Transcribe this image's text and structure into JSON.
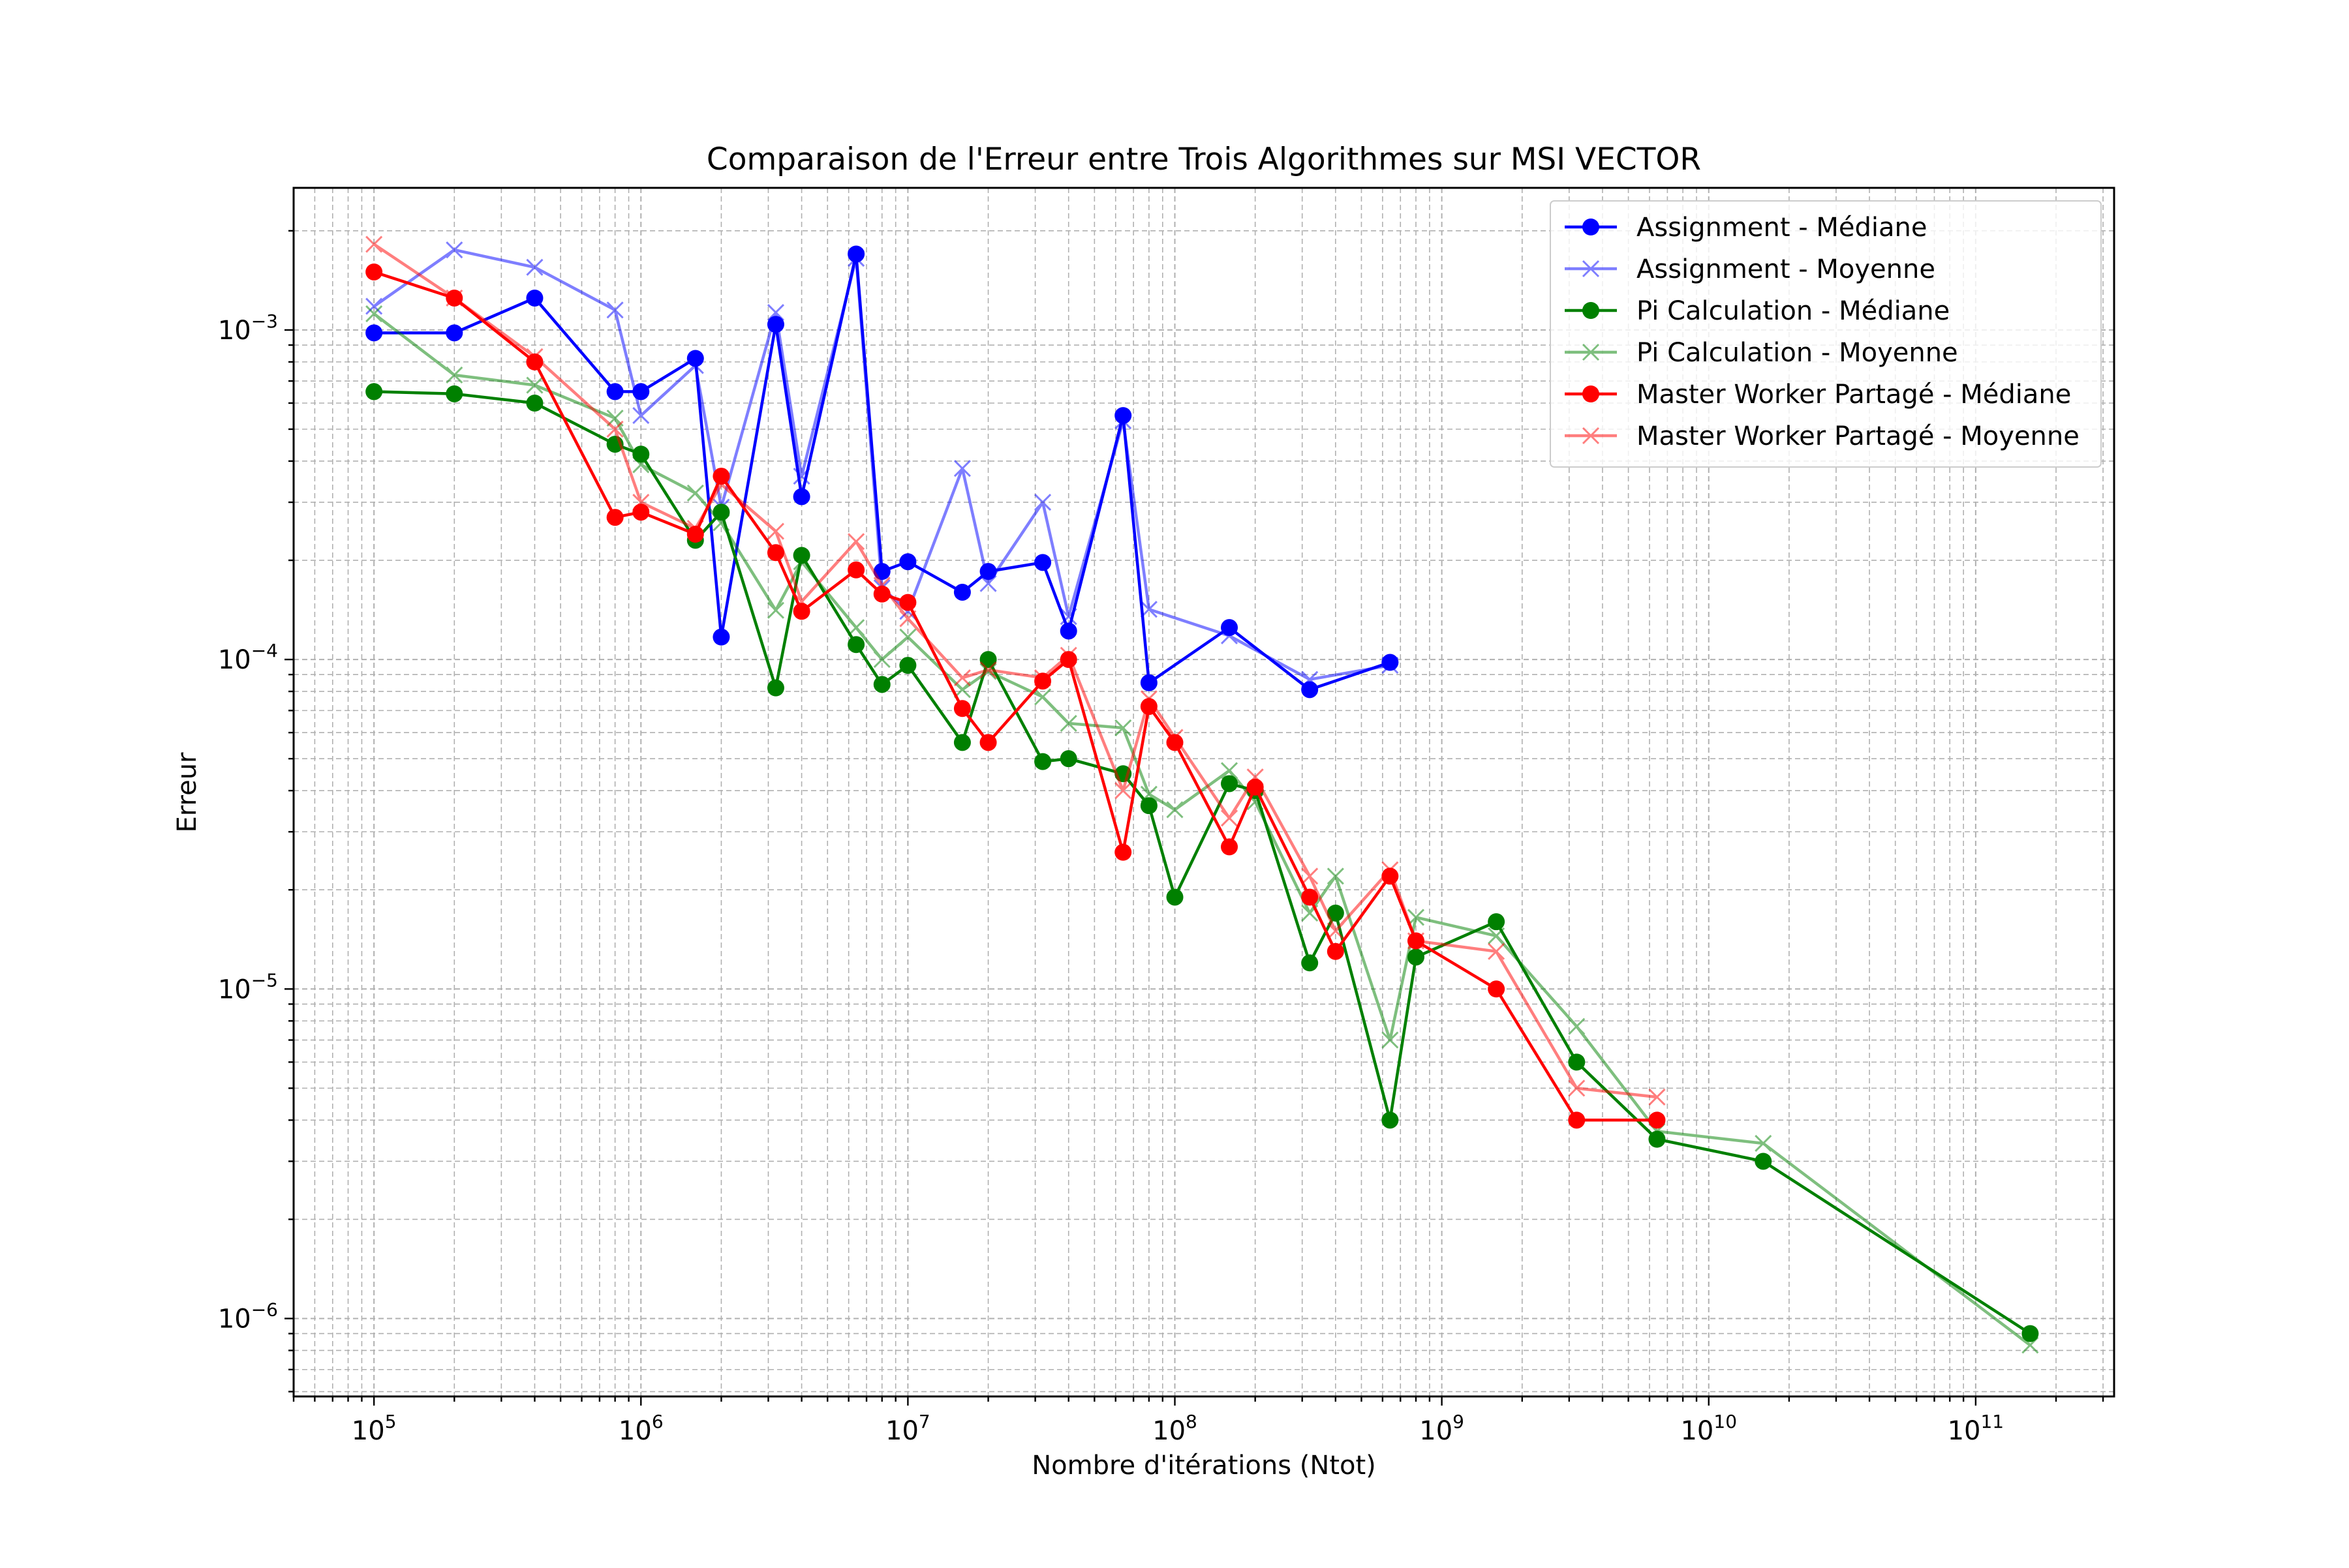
{
  "chart_data": {
    "type": "line",
    "title": "Comparaison de l'Erreur entre Trois Algorithmes sur MSI VECTOR",
    "xlabel": "Nombre d'itérations (Ntot)",
    "ylabel": "Erreur",
    "xscale": "log",
    "yscale": "log",
    "xlim": [
      50000,
      330000000000
    ],
    "ylim": [
      5.8e-07,
      0.0027
    ],
    "x_ticks": [
      {
        "value": 100000,
        "base": "10",
        "exp": "5"
      },
      {
        "value": 1000000,
        "base": "10",
        "exp": "6"
      },
      {
        "value": 10000000,
        "base": "10",
        "exp": "7"
      },
      {
        "value": 100000000,
        "base": "10",
        "exp": "8"
      },
      {
        "value": 1000000000,
        "base": "10",
        "exp": "9"
      },
      {
        "value": 10000000000,
        "base": "10",
        "exp": "10"
      },
      {
        "value": 100000000000,
        "base": "10",
        "exp": "11"
      }
    ],
    "y_ticks": [
      {
        "value": 1e-06,
        "base": "10",
        "exp": "−6"
      },
      {
        "value": 1e-05,
        "base": "10",
        "exp": "−5"
      },
      {
        "value": 0.0001,
        "base": "10",
        "exp": "−4"
      },
      {
        "value": 0.001,
        "base": "10",
        "exp": "−3"
      }
    ],
    "grid": true,
    "legend_position": "top-right",
    "series": [
      {
        "name": "Assignment - Médiane",
        "color": "#0000ff",
        "marker": "circle",
        "opacity": 1,
        "x": [
          100000,
          200000,
          400000,
          800000,
          1000000,
          1600000,
          2000000,
          3200000,
          4000000,
          6400000,
          8000000,
          10000000,
          16000000,
          20000000,
          32000000,
          40000000,
          64000000,
          80000000,
          160000000,
          320000000,
          640000000
        ],
        "y": [
          0.00098,
          0.00098,
          0.00125,
          0.00065,
          0.00065,
          0.00082,
          0.000117,
          0.00104,
          0.000312,
          0.0017,
          0.000185,
          0.000198,
          0.00016,
          0.000185,
          0.000197,
          0.000122,
          0.00055,
          8.5e-05,
          0.000125,
          8.1e-05,
          9.8e-05
        ]
      },
      {
        "name": "Assignment - Moyenne",
        "color": "#0000ff",
        "marker": "x",
        "opacity": 0.5,
        "x": [
          100000,
          200000,
          400000,
          800000,
          1000000,
          1600000,
          2000000,
          3200000,
          4000000,
          6400000,
          8000000,
          10000000,
          16000000,
          20000000,
          32000000,
          40000000,
          64000000,
          80000000,
          160000000,
          320000000,
          640000000
        ],
        "y": [
          0.00118,
          0.00175,
          0.00155,
          0.00115,
          0.00055,
          0.00078,
          0.00029,
          0.00113,
          0.00036,
          0.00165,
          0.000165,
          0.00014,
          0.00038,
          0.00017,
          0.0003,
          0.000135,
          0.00053,
          0.000142,
          0.000118,
          8.7e-05,
          9.6e-05
        ]
      },
      {
        "name": "Pi Calculation - Médiane",
        "color": "#008000",
        "marker": "circle",
        "opacity": 1,
        "x": [
          100000,
          200000,
          400000,
          800000,
          1000000,
          1600000,
          2000000,
          3200000,
          4000000,
          6400000,
          8000000,
          10000000,
          16000000,
          20000000,
          32000000,
          40000000,
          64000000,
          80000000,
          100000000,
          160000000,
          200000000,
          320000000,
          400000000,
          640000000,
          800000000,
          1600000000,
          3200000000,
          6400000000,
          16000000000,
          160000000000
        ],
        "y": [
          0.00065,
          0.00064,
          0.0006,
          0.00045,
          0.00042,
          0.00023,
          0.00028,
          8.2e-05,
          0.000207,
          0.000111,
          8.4e-05,
          9.6e-05,
          5.6e-05,
          0.0001,
          4.9e-05,
          5e-05,
          4.5e-05,
          3.6e-05,
          1.9e-05,
          4.2e-05,
          4e-05,
          1.2e-05,
          1.7e-05,
          4e-06,
          1.25e-05,
          1.6e-05,
          6e-06,
          3.5e-06,
          3e-06,
          9e-07
        ]
      },
      {
        "name": "Pi Calculation - Moyenne",
        "color": "#008000",
        "marker": "x",
        "opacity": 0.5,
        "x": [
          100000,
          200000,
          400000,
          800000,
          1000000,
          1600000,
          2000000,
          3200000,
          4000000,
          6400000,
          8000000,
          10000000,
          16000000,
          20000000,
          32000000,
          40000000,
          64000000,
          80000000,
          100000000,
          160000000,
          200000000,
          320000000,
          400000000,
          640000000,
          800000000,
          1600000000,
          3200000000,
          6400000000,
          16000000000,
          160000000000
        ],
        "y": [
          0.00112,
          0.00073,
          0.00068,
          0.00054,
          0.00039,
          0.00032,
          0.00026,
          0.000141,
          0.000198,
          0.000125,
          0.0001,
          0.000117,
          8.1e-05,
          9.2e-05,
          7.7e-05,
          6.4e-05,
          6.2e-05,
          3.9e-05,
          3.5e-05,
          4.6e-05,
          3.7e-05,
          1.7e-05,
          2.2e-05,
          7e-06,
          1.65e-05,
          1.45e-05,
          7.7e-06,
          3.7e-06,
          3.4e-06,
          8.3e-07
        ]
      },
      {
        "name": "Master Worker Partagé - Médiane",
        "color": "#ff0000",
        "marker": "circle",
        "opacity": 1,
        "x": [
          100000,
          200000,
          400000,
          800000,
          1000000,
          1600000,
          2000000,
          3200000,
          4000000,
          6400000,
          8000000,
          10000000,
          16000000,
          20000000,
          32000000,
          40000000,
          64000000,
          80000000,
          100000000,
          160000000,
          200000000,
          320000000,
          400000000,
          640000000,
          800000000,
          1600000000,
          3200000000,
          6400000000
        ],
        "y": [
          0.0015,
          0.00125,
          0.0008,
          0.00027,
          0.00028,
          0.00024,
          0.00036,
          0.000211,
          0.00014,
          0.000187,
          0.000158,
          0.000149,
          7.1e-05,
          5.6e-05,
          8.6e-05,
          0.0001,
          2.6e-05,
          7.2e-05,
          5.6e-05,
          2.7e-05,
          4.1e-05,
          1.9e-05,
          1.3e-05,
          2.2e-05,
          1.4e-05,
          1e-05,
          4e-06,
          4e-06
        ]
      },
      {
        "name": "Master Worker Partagé - Moyenne",
        "color": "#ff0000",
        "marker": "x",
        "opacity": 0.5,
        "x": [
          100000,
          200000,
          400000,
          800000,
          1000000,
          1600000,
          2000000,
          3200000,
          4000000,
          6400000,
          8000000,
          10000000,
          16000000,
          20000000,
          32000000,
          40000000,
          64000000,
          80000000,
          100000000,
          160000000,
          200000000,
          320000000,
          400000000,
          640000000,
          800000000,
          1600000000,
          3200000000,
          6400000000
        ],
        "y": [
          0.00182,
          0.00125,
          0.00083,
          0.0005,
          0.0003,
          0.00025,
          0.00034,
          0.000245,
          0.00015,
          0.000228,
          0.000168,
          0.000133,
          8.8e-05,
          9.3e-05,
          8.8e-05,
          0.000103,
          4e-05,
          7.6e-05,
          5.8e-05,
          3.3e-05,
          4.4e-05,
          2.2e-05,
          1.5e-05,
          2.3e-05,
          1.4e-05,
          1.3e-05,
          5e-06,
          4.7e-06
        ]
      }
    ]
  }
}
